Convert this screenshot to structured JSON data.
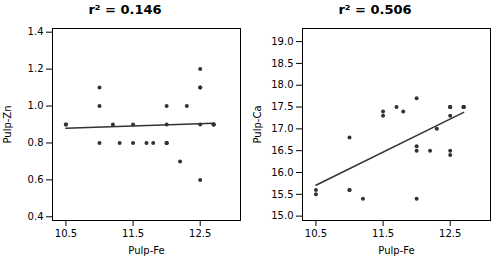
{
  "chart_data": [
    {
      "type": "scatter",
      "title": "r² = 0.146",
      "x_label": "Pulp-Fe",
      "y_label": "Pulp-Zn",
      "series": [
        {
          "type": "scatter",
          "color": "#333333",
          "x": [
            10.5,
            10.5,
            11.0,
            11.0,
            11.0,
            11.2,
            11.3,
            11.5,
            11.5,
            11.7,
            11.8,
            12.0,
            12.0,
            12.0,
            12.0,
            12.0,
            12.2,
            12.3,
            12.5,
            12.5,
            12.5,
            12.5,
            12.5,
            12.7,
            12.7,
            12.7
          ],
          "values": [
            0.9,
            0.9,
            1.1,
            0.8,
            1.0,
            0.9,
            0.8,
            0.9,
            0.8,
            0.8,
            0.8,
            1.0,
            0.8,
            0.8,
            0.8,
            0.9,
            0.7,
            1.0,
            0.6,
            0.9,
            1.1,
            1.1,
            1.2,
            0.9,
            0.9,
            0.9
          ]
        },
        {
          "type": "line",
          "color": "#333333",
          "x": [
            10.5,
            12.7
          ],
          "values": [
            0.8792,
            0.9068
          ]
        }
      ],
      "xlim": [
        10.3,
        13.1
      ],
      "ylim": [
        0.38,
        1.42
      ],
      "xticks": [
        10.5,
        11.5,
        12.5
      ],
      "yticks": [
        0.4,
        0.6,
        0.8,
        {
          "value": 1.0,
          "label": "1.0"
        },
        1.2,
        1.4
      ],
      "grid": false
    },
    {
      "type": "scatter",
      "title": "r² = 0.506",
      "x_label": "Pulp-Fe",
      "y_label": "Pulp-Ca",
      "series": [
        {
          "type": "scatter",
          "color": "#333333",
          "x": [
            10.5,
            10.5,
            11.0,
            11.0,
            11.0,
            11.2,
            11.5,
            11.5,
            11.7,
            11.8,
            12.0,
            12.0,
            12.0,
            12.0,
            12.2,
            12.3,
            12.5,
            12.5,
            12.5,
            12.5,
            12.5,
            12.5,
            12.7,
            12.7,
            12.7,
            12.7
          ],
          "values": [
            15.6,
            15.5,
            16.8,
            15.6,
            15.6,
            15.4,
            17.4,
            17.3,
            17.5,
            17.4,
            16.6,
            16.5,
            17.7,
            15.4,
            16.5,
            17.0,
            17.5,
            17.5,
            17.5,
            16.5,
            17.3,
            16.4,
            17.5,
            17.5,
            17.5,
            17.5
          ]
        },
        {
          "type": "line",
          "color": "#333333",
          "x": [
            10.5,
            12.7
          ],
          "values": [
            15.7069,
            17.3789
          ]
        }
      ],
      "xlim": [
        10.3,
        13.1
      ],
      "ylim": [
        14.9,
        19.3
      ],
      "xticks": [
        10.5,
        11.5,
        12.5
      ],
      "yticks": [
        {
          "value": 15.0,
          "label": "15.0"
        },
        15.5,
        {
          "value": 16.0,
          "label": "16.0"
        },
        16.5,
        {
          "value": 17.0,
          "label": "17.0"
        },
        17.5,
        {
          "value": 18.0,
          "label": "18.0"
        },
        18.5,
        {
          "value": 19.0,
          "label": "19.0"
        }
      ],
      "grid": false
    }
  ]
}
